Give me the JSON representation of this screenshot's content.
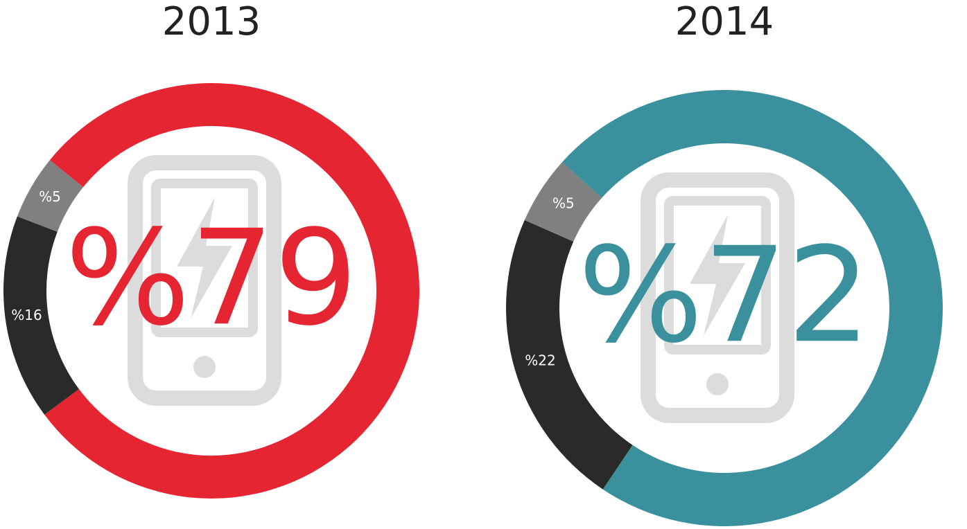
{
  "chart_data": [
    {
      "type": "pie",
      "title": "2013",
      "values": [
        79,
        16,
        5
      ],
      "value_labels": [
        "%79",
        "%16",
        "%5"
      ],
      "colors": [
        "#e52532",
        "#2a2a2a",
        "#808080"
      ]
    },
    {
      "type": "pie",
      "title": "2014",
      "values": [
        72,
        22,
        5
      ],
      "value_labels": [
        "%72",
        "%22",
        "%5"
      ],
      "colors": [
        "#3a909c",
        "#2a2a2a",
        "#808080"
      ]
    }
  ]
}
